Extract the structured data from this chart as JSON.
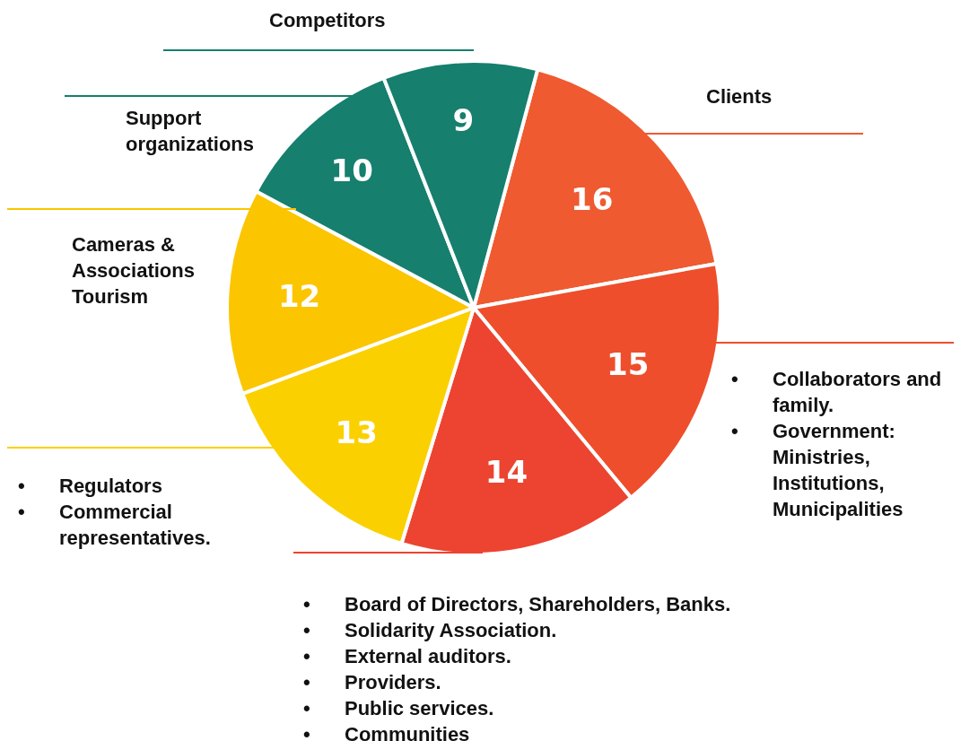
{
  "chart_data": {
    "type": "pie",
    "categories": [
      "Clients",
      "• Collaborators and family.\n• Government: Ministries, Institutions, Municipalities",
      "• Board of Directors, Shareholders, Banks.\n• Solidarity Association.\n• External auditors.\n• Providers.\n• Public services.\n• Communities",
      "• Regulators\n• Commercial representatives.",
      "Cameras & Associations Tourism",
      "Support organizations",
      "Competitors"
    ],
    "values": [
      16,
      15,
      14,
      13,
      12,
      10,
      9
    ],
    "colors": [
      "#ef5a30",
      "#ee4e2c",
      "#ec4430",
      "#fbd000",
      "#fbc500",
      "#167f6e",
      "#167f6e"
    ],
    "data_labels": true,
    "legend": false
  }
}
